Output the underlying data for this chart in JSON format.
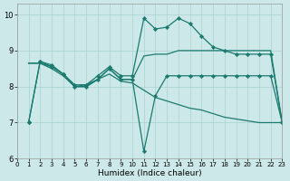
{
  "background_color": "#cde8e8",
  "line_color": "#1a7a6e",
  "grid_color": "#aad0d0",
  "xlabel": "Humidex (Indice chaleur)",
  "xlim": [
    0,
    23
  ],
  "ylim": [
    6,
    10.3
  ],
  "xticks": [
    0,
    1,
    2,
    3,
    4,
    5,
    6,
    7,
    8,
    9,
    10,
    11,
    12,
    13,
    14,
    15,
    16,
    17,
    18,
    19,
    20,
    21,
    22,
    23
  ],
  "yticks": [
    6,
    7,
    8,
    9,
    10
  ],
  "line1_x": [
    1,
    2,
    3,
    4,
    5,
    6,
    7,
    8,
    9,
    10,
    11,
    12,
    13,
    14,
    15,
    16,
    17,
    18,
    19,
    20,
    21,
    22,
    23
  ],
  "line1_y": [
    7.0,
    8.7,
    8.6,
    8.35,
    8.05,
    8.05,
    8.3,
    8.55,
    8.3,
    8.3,
    9.9,
    9.6,
    9.65,
    9.9,
    9.75,
    9.4,
    9.1,
    9.0,
    8.9,
    8.9,
    8.9,
    8.9,
    7.0
  ],
  "line2_x": [
    1,
    2,
    3,
    4,
    5,
    6,
    7,
    8,
    9,
    10,
    11,
    12,
    13,
    14,
    15,
    16,
    17,
    18,
    19,
    20,
    21,
    22,
    23
  ],
  "line2_y": [
    7.0,
    8.7,
    8.55,
    8.35,
    8.0,
    8.0,
    8.2,
    8.5,
    8.2,
    8.2,
    6.2,
    7.75,
    8.3,
    8.3,
    8.3,
    8.3,
    8.3,
    8.3,
    8.3,
    8.3,
    8.3,
    8.3,
    7.0
  ],
  "line3_x": [
    1,
    2,
    3,
    4,
    5,
    6,
    7,
    8,
    9,
    10,
    11,
    12,
    13,
    14,
    15,
    16,
    17,
    18,
    19,
    20,
    21,
    22,
    23
  ],
  "line3_y": [
    8.65,
    8.65,
    8.55,
    8.35,
    8.0,
    8.05,
    8.2,
    8.5,
    8.2,
    8.2,
    8.85,
    8.9,
    8.9,
    9.0,
    9.0,
    9.0,
    9.0,
    9.0,
    9.0,
    9.0,
    9.0,
    9.0,
    7.0
  ],
  "line4_x": [
    1,
    2,
    3,
    4,
    5,
    6,
    7,
    8,
    9,
    10,
    11,
    12,
    13,
    14,
    15,
    16,
    17,
    18,
    19,
    20,
    21,
    22,
    23
  ],
  "line4_y": [
    8.65,
    8.65,
    8.5,
    8.3,
    8.0,
    8.0,
    8.2,
    8.35,
    8.15,
    8.1,
    7.9,
    7.7,
    7.6,
    7.5,
    7.4,
    7.35,
    7.25,
    7.15,
    7.1,
    7.05,
    7.0,
    7.0,
    7.0
  ]
}
